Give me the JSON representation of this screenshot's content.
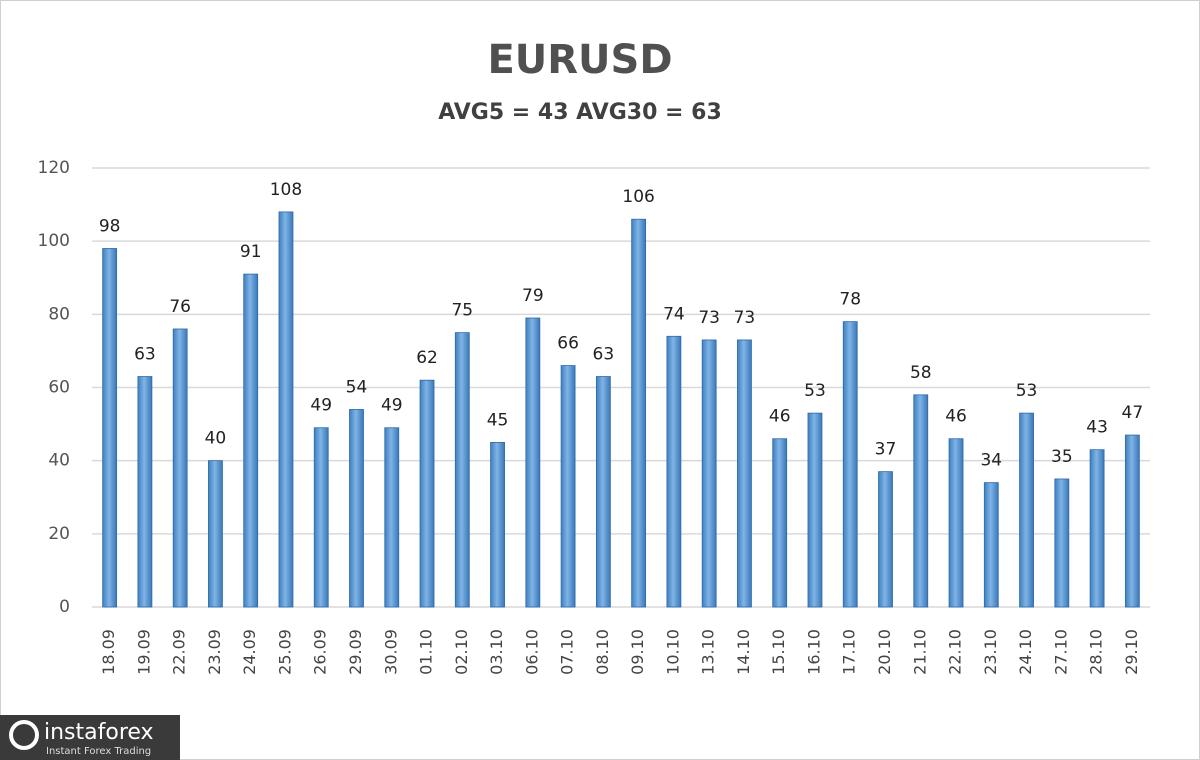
{
  "chart_data": {
    "type": "bar",
    "title": "EURUSD",
    "subtitle": "AVG5 = 43 AVG30 = 63",
    "categories": [
      "18.09",
      "19.09",
      "22.09",
      "23.09",
      "24.09",
      "25.09",
      "26.09",
      "29.09",
      "30.09",
      "01.10",
      "02.10",
      "03.10",
      "06.10",
      "07.10",
      "08.10",
      "09.10",
      "10.10",
      "13.10",
      "14.10",
      "15.10",
      "16.10",
      "17.10",
      "20.10",
      "21.10",
      "22.10",
      "23.10",
      "24.10",
      "27.10",
      "28.10",
      "29.10"
    ],
    "values": [
      98,
      63,
      76,
      40,
      91,
      108,
      49,
      54,
      49,
      62,
      75,
      45,
      79,
      66,
      63,
      106,
      74,
      73,
      73,
      46,
      53,
      78,
      37,
      58,
      46,
      34,
      53,
      35,
      43,
      47
    ],
    "color": "#5b9bd5",
    "ylim": [
      0,
      120
    ],
    "yticks": [
      0,
      20,
      40,
      60,
      80,
      100,
      120
    ],
    "grid": true
  },
  "watermark": {
    "brand": "instaforex",
    "tagline": "Instant Forex Trading"
  }
}
